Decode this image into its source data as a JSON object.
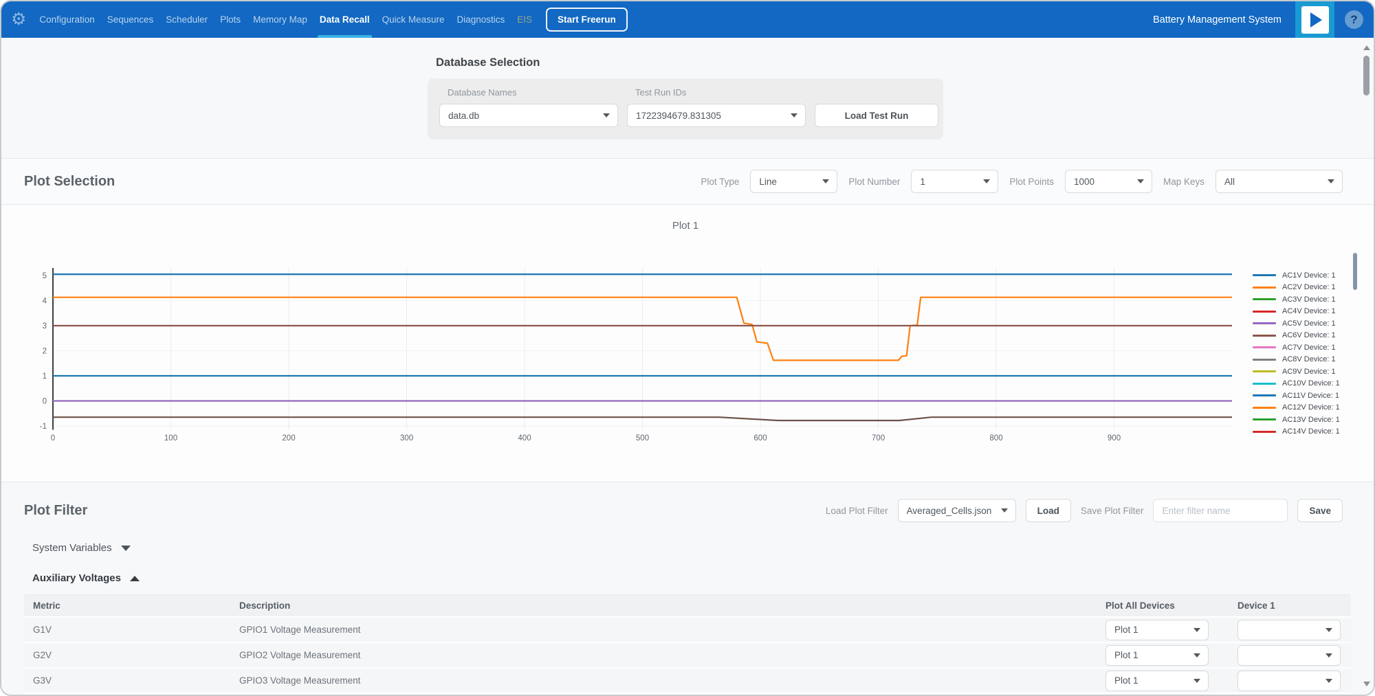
{
  "navbar": {
    "icons": {
      "gear": "⚙",
      "help": "?"
    },
    "items": [
      {
        "label": "Configuration",
        "state": "normal"
      },
      {
        "label": "Sequences",
        "state": "normal"
      },
      {
        "label": "Scheduler",
        "state": "normal"
      },
      {
        "label": "Plots",
        "state": "normal"
      },
      {
        "label": "Memory Map",
        "state": "normal"
      },
      {
        "label": "Data Recall",
        "state": "active"
      },
      {
        "label": "Quick Measure",
        "state": "normal"
      },
      {
        "label": "Diagnostics",
        "state": "normal"
      },
      {
        "label": "EIS",
        "state": "disabled"
      }
    ],
    "start_freerun_label": "Start Freerun",
    "app_title": "Battery Management System",
    "colors": {
      "bar": "#1268c2",
      "active_underline": "#38b2e3",
      "play_tile": "#199ad2"
    }
  },
  "database_selection": {
    "heading": "Database Selection",
    "database_names_label": "Database Names",
    "database_names_value": "data.db",
    "test_run_ids_label": "Test Run IDs",
    "test_run_ids_value": "1722394679.831305",
    "load_button_label": "Load Test Run"
  },
  "plot_selection": {
    "heading": "Plot Selection",
    "plot_type_label": "Plot Type",
    "plot_type_value": "Line",
    "plot_number_label": "Plot Number",
    "plot_number_value": "1",
    "plot_points_label": "Plot Points",
    "plot_points_value": "1000",
    "map_keys_label": "Map Keys",
    "map_keys_value": "All"
  },
  "chart_data": {
    "type": "line",
    "title": "Plot 1",
    "xlabel": "",
    "ylabel": "",
    "xlim": [
      0,
      1000
    ],
    "x_ticks": [
      0,
      100,
      200,
      300,
      400,
      500,
      600,
      700,
      800,
      900
    ],
    "ylim": [
      -1.15,
      5.3
    ],
    "y_ticks": [
      -1,
      0,
      1,
      2,
      3,
      4,
      5
    ],
    "grid": true,
    "legend_position": "right",
    "legend": [
      {
        "label": "AC1V Device: 1",
        "color": "#1f77b4"
      },
      {
        "label": "AC2V Device: 1",
        "color": "#ff7f0e"
      },
      {
        "label": "AC3V Device: 1",
        "color": "#2ca02c"
      },
      {
        "label": "AC4V Device: 1",
        "color": "#d62728"
      },
      {
        "label": "AC5V Device: 1",
        "color": "#9467bd"
      },
      {
        "label": "AC6V Device: 1",
        "color": "#8c564b"
      },
      {
        "label": "AC7V Device: 1",
        "color": "#e377c2"
      },
      {
        "label": "AC8V Device: 1",
        "color": "#7f7f7f"
      },
      {
        "label": "AC9V Device: 1",
        "color": "#bcbd22"
      },
      {
        "label": "AC10V Device: 1",
        "color": "#17becf"
      },
      {
        "label": "AC11V Device: 1",
        "color": "#1f77b4"
      },
      {
        "label": "AC12V Device: 1",
        "color": "#ff7f0e"
      },
      {
        "label": "AC13V Device: 1",
        "color": "#2ca02c"
      },
      {
        "label": "AC14V Device: 1",
        "color": "#d62728"
      }
    ],
    "visible_traces": [
      {
        "color": "#1f77b4",
        "points": [
          [
            0,
            5.05
          ],
          [
            1000,
            5.05
          ]
        ]
      },
      {
        "color": "#ff7f0e",
        "points": [
          [
            0,
            4.13
          ],
          [
            580,
            4.13
          ],
          [
            586,
            3.1
          ],
          [
            593,
            3.05
          ],
          [
            597,
            2.35
          ],
          [
            606,
            2.3
          ],
          [
            611,
            1.62
          ],
          [
            717,
            1.62
          ],
          [
            720,
            1.78
          ],
          [
            724,
            1.8
          ],
          [
            727,
            3.0
          ],
          [
            733,
            3.02
          ],
          [
            736,
            4.13
          ],
          [
            1000,
            4.13
          ]
        ]
      },
      {
        "color": "#8c564b",
        "points": [
          [
            0,
            3.0
          ],
          [
            1000,
            3.0
          ]
        ]
      },
      {
        "color": "#1f77b4",
        "points": [
          [
            0,
            1.0
          ],
          [
            1000,
            1.0
          ]
        ]
      },
      {
        "color": "#9467bd",
        "points": [
          [
            0,
            0.0
          ],
          [
            1000,
            0.0
          ]
        ]
      },
      {
        "color": "#6e5147",
        "points": [
          [
            0,
            -0.65
          ],
          [
            565,
            -0.65
          ],
          [
            615,
            -0.78
          ],
          [
            718,
            -0.78
          ],
          [
            745,
            -0.65
          ],
          [
            1000,
            -0.65
          ]
        ]
      }
    ]
  },
  "plot_filter": {
    "heading": "Plot Filter",
    "load_plot_filter_label": "Load Plot Filter",
    "load_filter_value": "Averaged_Cells.json",
    "load_button_label": "Load",
    "save_plot_filter_label": "Save Plot Filter",
    "save_input_placeholder": "Enter filter name",
    "save_button_label": "Save",
    "groups": [
      {
        "label": "System Variables",
        "expanded": false
      },
      {
        "label": "Auxiliary Voltages",
        "expanded": true
      }
    ],
    "table": {
      "columns": [
        "Metric",
        "Description",
        "Plot All Devices",
        "Device 1"
      ],
      "rows": [
        {
          "metric": "G1V",
          "description": "GPIO1 Voltage Measurement",
          "plot_all_devices": "Plot 1",
          "device_1": ""
        },
        {
          "metric": "G2V",
          "description": "GPIO2 Voltage Measurement",
          "plot_all_devices": "Plot 1",
          "device_1": ""
        },
        {
          "metric": "G3V",
          "description": "GPIO3 Voltage Measurement",
          "plot_all_devices": "Plot 1",
          "device_1": ""
        }
      ]
    }
  }
}
